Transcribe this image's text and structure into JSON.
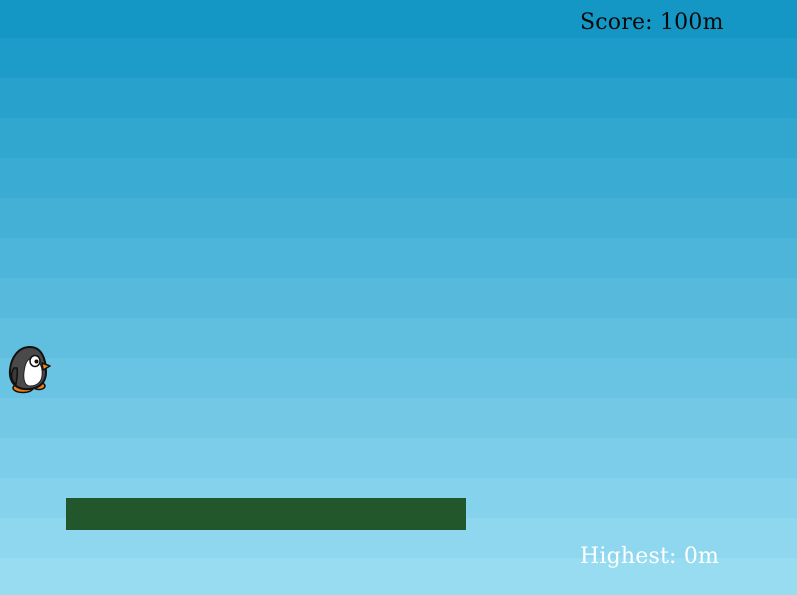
{
  "hud": {
    "score_text": "Score: 100m",
    "highest_text": "Highest: 0m"
  },
  "colors": {
    "sky_top": "#1597c6",
    "sky_bottom": "#98dcf2",
    "platform": "#22572b",
    "score_text": "#0a0a0a",
    "highest_text": "#ffffff"
  },
  "player": {
    "icon": "penguin-icon"
  }
}
